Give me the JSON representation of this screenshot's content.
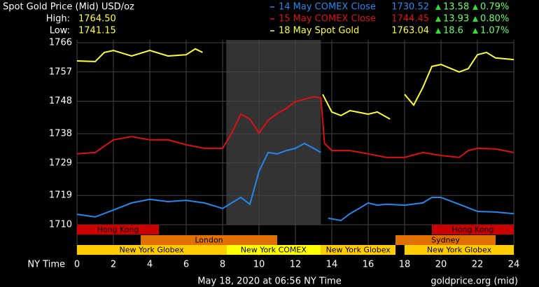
{
  "title": "Spot Gold Price (Mid) USD/oz",
  "high_label": "High:",
  "high": "1764.50",
  "low_label": "Low:",
  "low": "1741.15",
  "footer_left": "May 18, 2020 at 06:56 NY Time",
  "footer_right": "goldprice.org (mid)",
  "chart_data": {
    "type": "line",
    "x_label": "NY Time",
    "xlim": [
      0,
      24
    ],
    "xticks": [
      0,
      2,
      4,
      6,
      8,
      10,
      12,
      14,
      16,
      18,
      20,
      22,
      24
    ],
    "ylim": [
      1710,
      1766
    ],
    "yticks": [
      1710,
      1719,
      1729,
      1738,
      1748,
      1757,
      1766
    ],
    "grid": true,
    "highlight": [
      8.2,
      13.4
    ],
    "series": [
      {
        "name": "14 May COMEX Close",
        "color": "#2288ee",
        "close": 1730.52,
        "change": 13.58,
        "change_pct": "0.79%",
        "x": [
          0,
          1,
          2,
          3,
          4,
          5,
          6,
          7,
          8,
          8.5,
          9,
          9.5,
          10,
          10.5,
          11,
          11.5,
          12,
          12.5,
          13,
          13.4,
          13.6,
          13.8,
          14.5,
          15,
          15.5,
          16,
          16.5,
          17,
          18,
          19,
          19.5,
          20,
          21,
          22,
          23,
          24
        ],
        "values": [
          1713.2,
          1712.4,
          1714.5,
          1716.7,
          1717.8,
          1717.1,
          1717.5,
          1716.7,
          1715,
          1716.7,
          1718.4,
          1716.3,
          1726.4,
          1732.2,
          1731.8,
          1732.8,
          1733.5,
          1735,
          1733.5,
          1732.2,
          null,
          1712,
          1711.3,
          1713.4,
          1715,
          1716.7,
          1716,
          1716.3,
          1716,
          1716.7,
          1718.4,
          1718.4,
          1716.3,
          1714.1,
          1713.9,
          1713.4
        ]
      },
      {
        "name": "15 May COMEX Close",
        "color": "#dd1111",
        "close": 1744.45,
        "change": 13.93,
        "change_pct": "0.80%",
        "x": [
          0,
          1,
          2,
          3,
          4,
          5,
          6,
          7,
          8,
          8.5,
          9,
          9.5,
          10,
          10.5,
          11,
          11.5,
          12,
          12.5,
          13,
          13.4,
          13.6,
          14,
          15,
          16,
          17,
          18,
          19,
          20,
          21,
          21.5,
          22,
          23,
          24
        ],
        "values": [
          1731.8,
          1732.2,
          1736.1,
          1737.1,
          1736.1,
          1736.1,
          1734.6,
          1733.5,
          1733.5,
          1738.2,
          1744,
          1742.5,
          1738.2,
          1742.1,
          1744.2,
          1745.8,
          1747.9,
          1748.6,
          1749.4,
          1749,
          1735,
          1732.8,
          1732.8,
          1731.8,
          1730.7,
          1730.7,
          1732.2,
          1731.3,
          1730.7,
          1732.8,
          1733.5,
          1733.3,
          1732.2
        ]
      },
      {
        "name": "18 May Spot Gold",
        "color": "#ffff33",
        "close": 1763.04,
        "change": 18.6,
        "change_pct": "1.07%",
        "x": [
          0,
          1,
          1.5,
          2,
          3,
          4,
          5,
          6,
          6.5,
          6.9,
          7,
          13.5,
          14,
          14.5,
          15,
          16,
          16.5,
          17.2,
          17.5,
          18,
          18.5,
          19,
          19.5,
          20,
          21,
          21.5,
          22,
          22.5,
          23,
          24
        ],
        "values": [
          1760.4,
          1760.2,
          1763,
          1763.6,
          1761.9,
          1763.6,
          1761.9,
          1762.3,
          1764.1,
          1763,
          null,
          1750.1,
          1744.7,
          1743.6,
          1745.1,
          1744,
          1744.7,
          1742.5,
          null,
          1750.1,
          1746.8,
          1752.2,
          1758.7,
          1759.3,
          1757,
          1758,
          1762.3,
          1763,
          1761.3,
          1760.8
        ]
      }
    ],
    "sessions": [
      {
        "name": "Hong Kong",
        "color": "#cc0000",
        "spans": [
          [
            0,
            4.5
          ],
          [
            19.5,
            24
          ]
        ]
      },
      {
        "name": "London",
        "color": "#e07000",
        "spans": [
          [
            3.5,
            11
          ]
        ]
      },
      {
        "name": "Sydney",
        "color": "#e07000",
        "spans": [
          [
            17.5,
            23
          ]
        ]
      },
      {
        "name": "New York Globex",
        "color": "#ffcc00",
        "spans": [
          [
            0,
            8.2
          ],
          [
            13.4,
            17.5
          ],
          [
            18,
            24
          ]
        ]
      },
      {
        "name": "New York COMEX",
        "color": "#ffff00",
        "spans": [
          [
            8.2,
            13.4
          ]
        ]
      }
    ]
  }
}
